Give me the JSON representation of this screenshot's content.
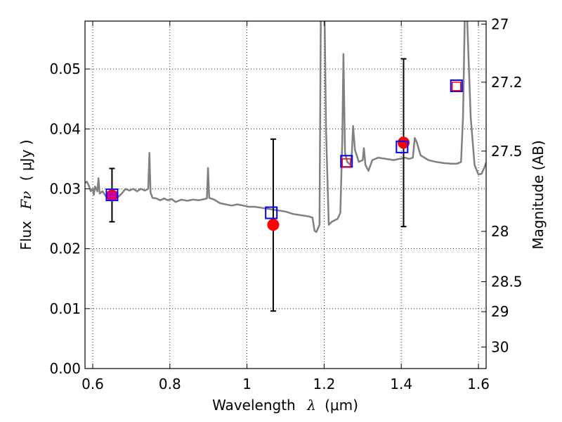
{
  "chart_data": {
    "type": "line",
    "xlabel_main": "Wavelength",
    "xlabel_symbol": "λ",
    "xlabel_units": "(μm)",
    "ylabel_main": "Flux",
    "ylabel_symbol": "Fν",
    "ylabel_units": "( μJy )",
    "y2label": "Magnitude (AB)",
    "xlim": [
      0.58,
      1.62
    ],
    "ylim": [
      0.0,
      0.058
    ],
    "grid": true,
    "xticks": [
      {
        "value": 0.6,
        "label": "0.6"
      },
      {
        "value": 0.8,
        "label": "0.8"
      },
      {
        "value": 1.0,
        "label": "1"
      },
      {
        "value": 1.2,
        "label": "1.2"
      },
      {
        "value": 1.4,
        "label": "1.4"
      },
      {
        "value": 1.6,
        "label": "1.6"
      }
    ],
    "yticks": [
      {
        "value": 0.0,
        "label": "0.00"
      },
      {
        "value": 0.01,
        "label": "0.01"
      },
      {
        "value": 0.02,
        "label": "0.02"
      },
      {
        "value": 0.03,
        "label": "0.03"
      },
      {
        "value": 0.04,
        "label": "0.04"
      },
      {
        "value": 0.05,
        "label": "0.05"
      }
    ],
    "y2ticks": [
      {
        "flux": 0.0575,
        "label": "27"
      },
      {
        "flux": 0.0478,
        "label": "27.2"
      },
      {
        "flux": 0.0363,
        "label": "27.5"
      },
      {
        "flux": 0.0229,
        "label": "28"
      },
      {
        "flux": 0.0145,
        "label": "28.5"
      },
      {
        "flux": 0.0095,
        "label": "29"
      },
      {
        "flux": 0.0036,
        "label": "30"
      }
    ],
    "series": [
      {
        "kind": "spectrum",
        "color": "#808080",
        "points": [
          [
            0.58,
            0.031
          ],
          [
            0.585,
            0.0312
          ],
          [
            0.59,
            0.0305
          ],
          [
            0.595,
            0.0296
          ],
          [
            0.6,
            0.03
          ],
          [
            0.603,
            0.029
          ],
          [
            0.606,
            0.0304
          ],
          [
            0.612,
            0.0296
          ],
          [
            0.615,
            0.0318
          ],
          [
            0.618,
            0.0292
          ],
          [
            0.625,
            0.0296
          ],
          [
            0.635,
            0.0287
          ],
          [
            0.645,
            0.0292
          ],
          [
            0.655,
            0.029
          ],
          [
            0.665,
            0.0286
          ],
          [
            0.675,
            0.0292
          ],
          [
            0.685,
            0.03
          ],
          [
            0.695,
            0.0297
          ],
          [
            0.705,
            0.03
          ],
          [
            0.715,
            0.0296
          ],
          [
            0.725,
            0.03
          ],
          [
            0.735,
            0.0297
          ],
          [
            0.744,
            0.03
          ],
          [
            0.747,
            0.036
          ],
          [
            0.75,
            0.0294
          ],
          [
            0.755,
            0.0285
          ],
          [
            0.765,
            0.0284
          ],
          [
            0.775,
            0.0281
          ],
          [
            0.785,
            0.0284
          ],
          [
            0.795,
            0.0281
          ],
          [
            0.805,
            0.0283
          ],
          [
            0.815,
            0.0278
          ],
          [
            0.83,
            0.0282
          ],
          [
            0.845,
            0.028
          ],
          [
            0.86,
            0.0282
          ],
          [
            0.875,
            0.0281
          ],
          [
            0.89,
            0.0283
          ],
          [
            0.896,
            0.0284
          ],
          [
            0.899,
            0.0335
          ],
          [
            0.902,
            0.0285
          ],
          [
            0.915,
            0.0282
          ],
          [
            0.93,
            0.0276
          ],
          [
            0.945,
            0.0274
          ],
          [
            0.96,
            0.0272
          ],
          [
            0.975,
            0.0274
          ],
          [
            0.99,
            0.0272
          ],
          [
            1.005,
            0.027
          ],
          [
            1.02,
            0.027
          ],
          [
            1.04,
            0.0268
          ],
          [
            1.06,
            0.0266
          ],
          [
            1.08,
            0.0264
          ],
          [
            1.1,
            0.0262
          ],
          [
            1.12,
            0.0258
          ],
          [
            1.14,
            0.0256
          ],
          [
            1.16,
            0.0254
          ],
          [
            1.17,
            0.0252
          ],
          [
            1.175,
            0.023
          ],
          [
            1.18,
            0.0228
          ],
          [
            1.188,
            0.024
          ],
          [
            1.192,
            0.065
          ],
          [
            1.2,
            0.065
          ],
          [
            1.205,
            0.04
          ],
          [
            1.212,
            0.024
          ],
          [
            1.22,
            0.0245
          ],
          [
            1.235,
            0.025
          ],
          [
            1.242,
            0.026
          ],
          [
            1.247,
            0.038
          ],
          [
            1.25,
            0.0525
          ],
          [
            1.254,
            0.036
          ],
          [
            1.26,
            0.0345
          ],
          [
            1.268,
            0.034
          ],
          [
            1.272,
            0.036
          ],
          [
            1.275,
            0.0405
          ],
          [
            1.28,
            0.0365
          ],
          [
            1.29,
            0.0345
          ],
          [
            1.3,
            0.0348
          ],
          [
            1.303,
            0.0368
          ],
          [
            1.307,
            0.034
          ],
          [
            1.315,
            0.033
          ],
          [
            1.325,
            0.0348
          ],
          [
            1.34,
            0.0352
          ],
          [
            1.36,
            0.035
          ],
          [
            1.38,
            0.0348
          ],
          [
            1.395,
            0.035
          ],
          [
            1.41,
            0.0352
          ],
          [
            1.42,
            0.035
          ],
          [
            1.43,
            0.0352
          ],
          [
            1.435,
            0.0385
          ],
          [
            1.44,
            0.0378
          ],
          [
            1.45,
            0.0356
          ],
          [
            1.47,
            0.0348
          ],
          [
            1.49,
            0.0345
          ],
          [
            1.51,
            0.0343
          ],
          [
            1.53,
            0.0342
          ],
          [
            1.545,
            0.0342
          ],
          [
            1.555,
            0.0345
          ],
          [
            1.56,
            0.042
          ],
          [
            1.565,
            0.06
          ],
          [
            1.57,
            0.06
          ],
          [
            1.58,
            0.042
          ],
          [
            1.59,
            0.034
          ],
          [
            1.6,
            0.0324
          ],
          [
            1.608,
            0.0325
          ],
          [
            1.615,
            0.0335
          ],
          [
            1.62,
            0.0344
          ]
        ]
      },
      {
        "kind": "observed",
        "color": "#ff0000",
        "points": [
          {
            "x": 0.65,
            "y": 0.0289,
            "yerr_low": 0.0245,
            "yerr_high": 0.0334
          },
          {
            "x": 1.068,
            "y": 0.024,
            "yerr_low": 0.0096,
            "yerr_high": 0.0383
          },
          {
            "x": 1.406,
            "y": 0.0377,
            "yerr_low": 0.0237,
            "yerr_high": 0.0517
          }
        ]
      },
      {
        "kind": "model_blue_squares",
        "color": "#0000ff",
        "points": [
          {
            "x": 0.65,
            "y": 0.029
          },
          {
            "x": 1.063,
            "y": 0.026
          },
          {
            "x": 1.258,
            "y": 0.0346
          },
          {
            "x": 1.402,
            "y": 0.037
          },
          {
            "x": 1.543,
            "y": 0.0472
          }
        ]
      },
      {
        "kind": "model_red_squares",
        "color": "#ff0000",
        "points": [
          {
            "x": 1.258,
            "y": 0.0343
          },
          {
            "x": 1.543,
            "y": 0.0471
          }
        ]
      },
      {
        "kind": "magenta_marker",
        "color": "#c000c0",
        "points": [
          {
            "x": 0.65,
            "y": 0.0289
          }
        ]
      }
    ]
  }
}
